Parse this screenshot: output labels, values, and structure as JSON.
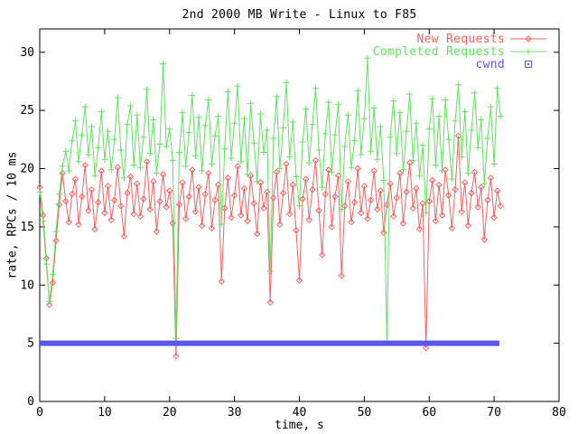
{
  "title": "2nd 2000 MB Write - Linux to F85",
  "colors": {
    "axis": "#000000",
    "background": "#ffffff"
  },
  "chart_data": {
    "type": "line",
    "title": "2nd 2000 MB Write - Linux to F85",
    "xlabel": "time, s",
    "ylabel": "rate, RPCs / 10 ms",
    "xlim": [
      0,
      80
    ],
    "ylim": [
      0,
      32
    ],
    "xticks": [
      0,
      10,
      20,
      30,
      40,
      50,
      60,
      70,
      80
    ],
    "yticks": [
      0,
      5,
      10,
      15,
      20,
      25,
      30
    ],
    "grid": false,
    "legend_position": "top-right-inside",
    "t_start": 0,
    "dt": 0.5,
    "series": [
      {
        "name": "New Requests",
        "color": "#f26060",
        "marker": "diamond",
        "values": [
          18.4,
          16.0,
          12.3,
          8.3,
          10.2,
          13.8,
          16.9,
          19.6,
          17.2,
          15.4,
          17.8,
          19.1,
          15.2,
          17.6,
          20.3,
          16.4,
          18.2,
          14.8,
          17.1,
          19.8,
          16.2,
          18.5,
          15.6,
          17.3,
          20.1,
          16.8,
          14.2,
          17.9,
          19.3,
          16.1,
          18.7,
          15.9,
          17.4,
          20.6,
          16.5,
          18.9,
          14.6,
          17.2,
          19.5,
          16.7,
          18.1,
          15.3,
          3.9,
          16.9,
          18.8,
          15.7,
          17.6,
          19.9,
          16.3,
          18.4,
          15.1,
          17.8,
          19.6,
          14.9,
          17.3,
          18.6,
          10.3,
          16.6,
          19.2,
          15.8,
          17.7,
          20.2,
          16.0,
          18.3,
          15.5,
          19.4,
          17.0,
          14.4,
          18.8,
          16.6,
          18.0,
          8.5,
          17.5,
          19.7,
          15.2,
          17.9,
          20.4,
          16.1,
          18.6,
          14.7,
          10.4,
          17.4,
          19.1,
          15.6,
          18.2,
          20.7,
          16.4,
          12.6,
          17.8,
          19.9,
          15.0,
          17.6,
          19.4,
          10.8,
          16.8,
          18.9,
          15.4,
          17.1,
          20.0,
          16.2,
          18.5,
          15.7,
          17.3,
          19.8,
          16.5,
          18.1,
          14.5,
          16.9,
          18.7,
          15.9,
          17.5,
          19.6,
          15.3,
          18.0,
          20.5,
          16.6,
          18.3,
          14.8,
          17.0,
          4.6,
          17.2,
          19.0,
          15.5,
          18.6,
          16.0,
          19.9,
          17.7,
          14.9,
          18.2,
          22.8,
          16.3,
          18.8,
          15.1,
          17.9,
          19.7,
          16.7,
          18.4,
          13.9,
          17.3,
          19.2,
          15.8,
          18.1,
          16.8
        ]
      },
      {
        "name": "Completed Requests",
        "color": "#60e060",
        "marker": "plus",
        "values": [
          18.0,
          15.5,
          11.8,
          8.6,
          10.9,
          14.6,
          17.8,
          20.2,
          21.5,
          19.8,
          22.4,
          24.1,
          20.6,
          22.9,
          25.3,
          21.2,
          23.6,
          19.4,
          21.8,
          24.9,
          20.8,
          23.2,
          19.9,
          22.5,
          26.1,
          21.6,
          19.2,
          23.8,
          25.4,
          20.3,
          24.6,
          20.1,
          22.7,
          26.8,
          21.3,
          24.2,
          19.6,
          22.1,
          29.0,
          21.9,
          23.4,
          20.7,
          5.4,
          21.4,
          24.8,
          20.2,
          23.1,
          26.3,
          21.1,
          24.4,
          19.8,
          23.7,
          25.9,
          20.4,
          22.8,
          24.5,
          15.2,
          21.7,
          26.6,
          20.9,
          23.9,
          27.1,
          20.6,
          24.3,
          19.5,
          25.6,
          22.2,
          18.9,
          24.7,
          21.4,
          23.3,
          11.2,
          22.6,
          26.2,
          20.0,
          23.5,
          27.4,
          21.0,
          24.0,
          19.3,
          16.8,
          22.3,
          25.1,
          20.5,
          23.8,
          26.9,
          21.6,
          18.4,
          23.0,
          25.7,
          19.7,
          22.9,
          25.5,
          16.5,
          21.9,
          24.6,
          20.1,
          22.4,
          26.7,
          21.2,
          24.3,
          29.5,
          21.5,
          25.2,
          20.8,
          23.6,
          19.0,
          5.2,
          22.7,
          25.8,
          21.3,
          24.8,
          19.9,
          23.2,
          26.4,
          20.7,
          23.9,
          19.4,
          22.0,
          16.2,
          23.4,
          26.0,
          20.3,
          24.5,
          19.8,
          25.9,
          22.5,
          19.1,
          24.1,
          27.2,
          21.0,
          24.9,
          19.6,
          23.3,
          26.5,
          21.8,
          24.2,
          18.7,
          22.6,
          25.3,
          20.4,
          26.9,
          24.5
        ]
      },
      {
        "name": "cwnd",
        "color": "#5b55ee",
        "marker": "square",
        "constant": 5,
        "t_range": [
          0,
          70.8
        ]
      }
    ]
  }
}
